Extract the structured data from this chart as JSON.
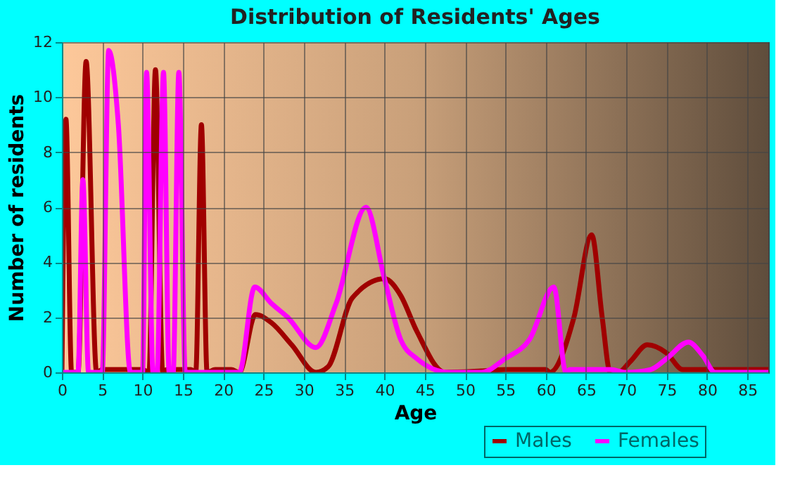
{
  "chart_data": {
    "type": "line",
    "title": "Distribution of Residents' Ages",
    "xlabel": "Age",
    "ylabel": "Number of residents",
    "xlim": [
      0,
      87.6
    ],
    "xticks": [
      0,
      5,
      10,
      15,
      20,
      25,
      30,
      35,
      40,
      45,
      50,
      55,
      60,
      65,
      70,
      75,
      80,
      85
    ],
    "ylim": [
      0,
      12
    ],
    "yticks": [
      0,
      2,
      4,
      6,
      8,
      10,
      12
    ],
    "grid": true,
    "legend": "bottom right",
    "line_style": "solid",
    "marker": "none",
    "series": [
      {
        "name": "Males",
        "color": "#a00000",
        "x": [
          0,
          0.5,
          1.2,
          2,
          3,
          4.3,
          5,
          10,
          10.8,
          11.6,
          12.5,
          13,
          16,
          16.6,
          17.3,
          18,
          19,
          21,
          22,
          24,
          26,
          28.5,
          31.5,
          33,
          36,
          40,
          42,
          44,
          47.5,
          52,
          55,
          60,
          60.5,
          63.5,
          65.7,
          67,
          68,
          69,
          70.5,
          72.6,
          75,
          77,
          80,
          87.6
        ],
        "values": [
          0,
          9.2,
          0,
          0,
          11.3,
          0,
          0.1,
          0.1,
          0,
          11,
          0,
          0.1,
          0.1,
          0,
          9,
          0,
          0.1,
          0.1,
          0,
          2.1,
          1.8,
          1,
          0,
          0.2,
          2.7,
          3.4,
          2.8,
          1.5,
          0,
          0.05,
          0.1,
          0.1,
          0,
          2,
          5,
          2,
          0,
          0,
          0.4,
          1,
          0.7,
          0.1,
          0.1,
          0.1
        ]
      },
      {
        "name": "Females",
        "color": "#ff00ff",
        "x": [
          0,
          2,
          2.6,
          3.3,
          5,
          5.8,
          7,
          8.5,
          10,
          10.5,
          11.3,
          11.8,
          12.6,
          13.3,
          13.8,
          14.5,
          15.3,
          22,
          23.9,
          26,
          28,
          31.5,
          34,
          37.7,
          40,
          42,
          44,
          48,
          52,
          55,
          58,
          61,
          62.5,
          63,
          68,
          70,
          73,
          75,
          77.7,
          79.5,
          81,
          87.6
        ],
        "values": [
          0,
          0,
          7,
          0,
          0,
          11.7,
          9,
          0,
          0,
          10.9,
          0,
          0,
          10.9,
          0,
          0,
          10.9,
          0,
          0,
          3.1,
          2.5,
          2,
          0.9,
          2.5,
          6,
          3.4,
          1.2,
          0.5,
          0,
          0,
          0.5,
          1.2,
          3.1,
          0,
          0.1,
          0.1,
          0,
          0.1,
          0.5,
          1.1,
          0.6,
          0,
          0
        ]
      }
    ]
  }
}
